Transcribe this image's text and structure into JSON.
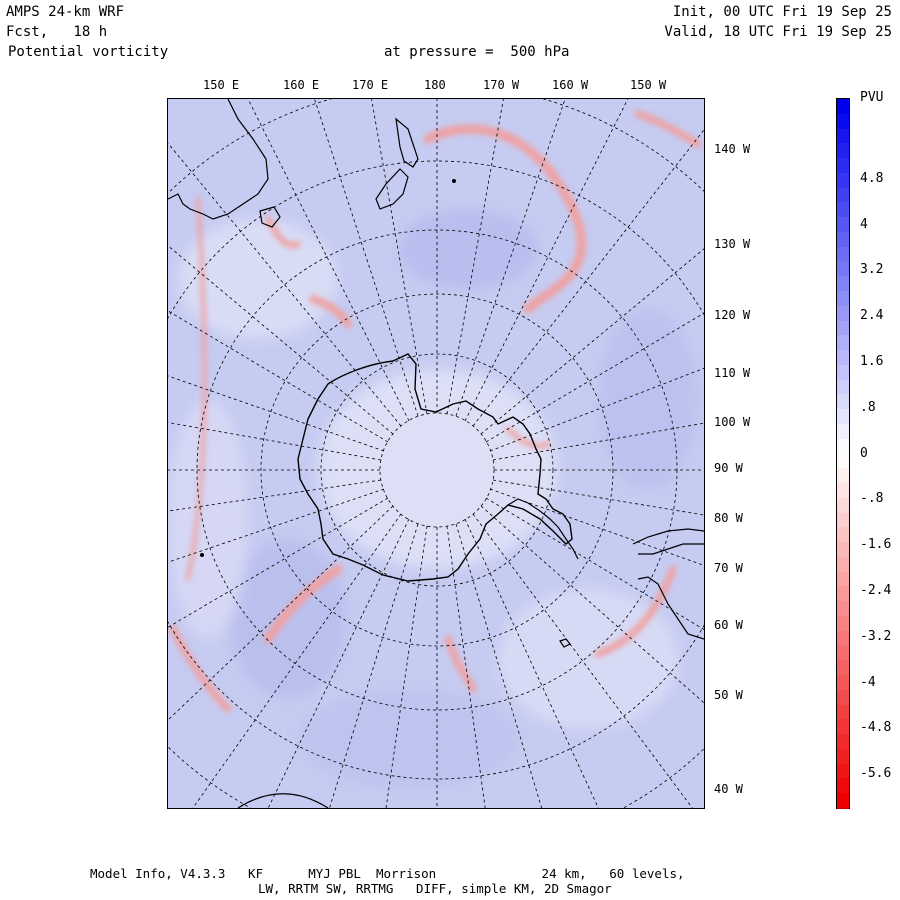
{
  "header": {
    "model": "AMPS 24-km WRF",
    "forecast": "Fcst,   18 h",
    "field": "Potential vorticity",
    "pressure": "at pressure =  500 hPa",
    "init": "Init, 00 UTC Fri 19 Sep 25",
    "valid": "Valid, 18 UTC Fri 19 Sep 25"
  },
  "top_longitudes": [
    "150 E",
    "160 E",
    "170 E",
    "180",
    "170 W",
    "160 W",
    "150 W"
  ],
  "right_longitudes": [
    "140 W",
    "130 W",
    "120 W",
    "110 W",
    "100 W",
    "90 W",
    "80 W",
    "70 W",
    "60 W",
    "50 W",
    "40 W"
  ],
  "colorbar": {
    "unit": "PVU",
    "labels": [
      "4.8",
      "4",
      "3.2",
      "2.4",
      "1.6",
      ".8",
      "0",
      "-.8",
      "-1.6",
      "-2.4",
      "-3.2",
      "-4",
      "-4.8",
      "-5.6"
    ],
    "max_color": "#0000ee",
    "zero_color": "#ffffff",
    "min_color": "#ee0000"
  },
  "colors": {
    "background_field": "#c8cdf2",
    "positive_streak": "#f0a0a0",
    "coastline": "#000000"
  },
  "footer": {
    "line1": "Model Info, V4.3.3   KF      MYJ PBL  Morrison              24 km,   60 levels,",
    "line2": "LW, RRTM SW, RRTMG   DIFF, simple KM, 2D Smagor"
  }
}
